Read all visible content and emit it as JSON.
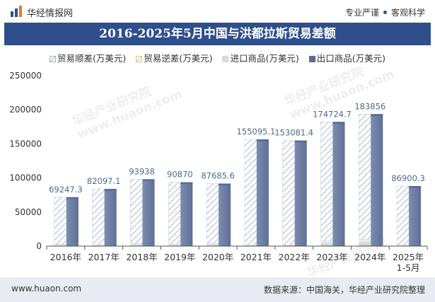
{
  "header": {
    "brand": "华经情报网",
    "slogan_left": "专业严谨",
    "slogan_right": "客观科学"
  },
  "watermark": {
    "text": "华经产业研究院",
    "url": "www.huaon.com"
  },
  "colors": {
    "export_bar": "#6f7fa3",
    "export_bar_top": "#5a6a90",
    "surplus_stripe": "#b9c6d8",
    "import_bar": "#d9d9d9",
    "deficit": "#f0d9a0",
    "axis_text": "#333333",
    "value_label": "#4a6b8a",
    "title_bg": "#2f4e8c"
  },
  "chart_data": {
    "type": "bar",
    "title": "2016-2025年5月中国与洪都拉斯贸易差额",
    "categories": [
      "2016年",
      "2017年",
      "2018年",
      "2019年",
      "2020年",
      "2021年",
      "2022年",
      "2023年",
      "2024年",
      "2025年\n1-5月"
    ],
    "series": [
      {
        "name": "贸易顺差(万美元)",
        "values": [
          69247.3,
          82097.1,
          93938,
          90870,
          87685.6,
          155095.1,
          153081.4,
          174724.7,
          183856,
          86900.3
        ]
      },
      {
        "name": "贸易逆差(万美元)",
        "values": [
          0,
          0,
          0,
          0,
          0,
          0,
          0,
          0,
          0,
          0
        ]
      },
      {
        "name": "进口商品(万美元)",
        "values": [
          2500,
          1800,
          4200,
          2800,
          4000,
          1500,
          1800,
          7500,
          9800,
          1200
        ]
      },
      {
        "name": "出口商品(万美元)",
        "values": [
          71747,
          83897,
          98138,
          93670,
          91686,
          156595,
          154881,
          182225,
          193656,
          88100
        ]
      }
    ],
    "data_labels": [
      "69247.3",
      "82097.1",
      "93938",
      "90870",
      "87685.6",
      "155095.1",
      "153081.4",
      "174724.7",
      "183856",
      "86900.3"
    ],
    "yticks": [
      "0",
      "50000",
      "100000",
      "150000",
      "200000",
      "250000"
    ],
    "ylim": [
      0,
      250000
    ],
    "legend_position": "top",
    "grid": false
  },
  "footer": {
    "url": "www.huaon.com",
    "source": "数据来源：中国海关，华经产业研究院整理"
  }
}
